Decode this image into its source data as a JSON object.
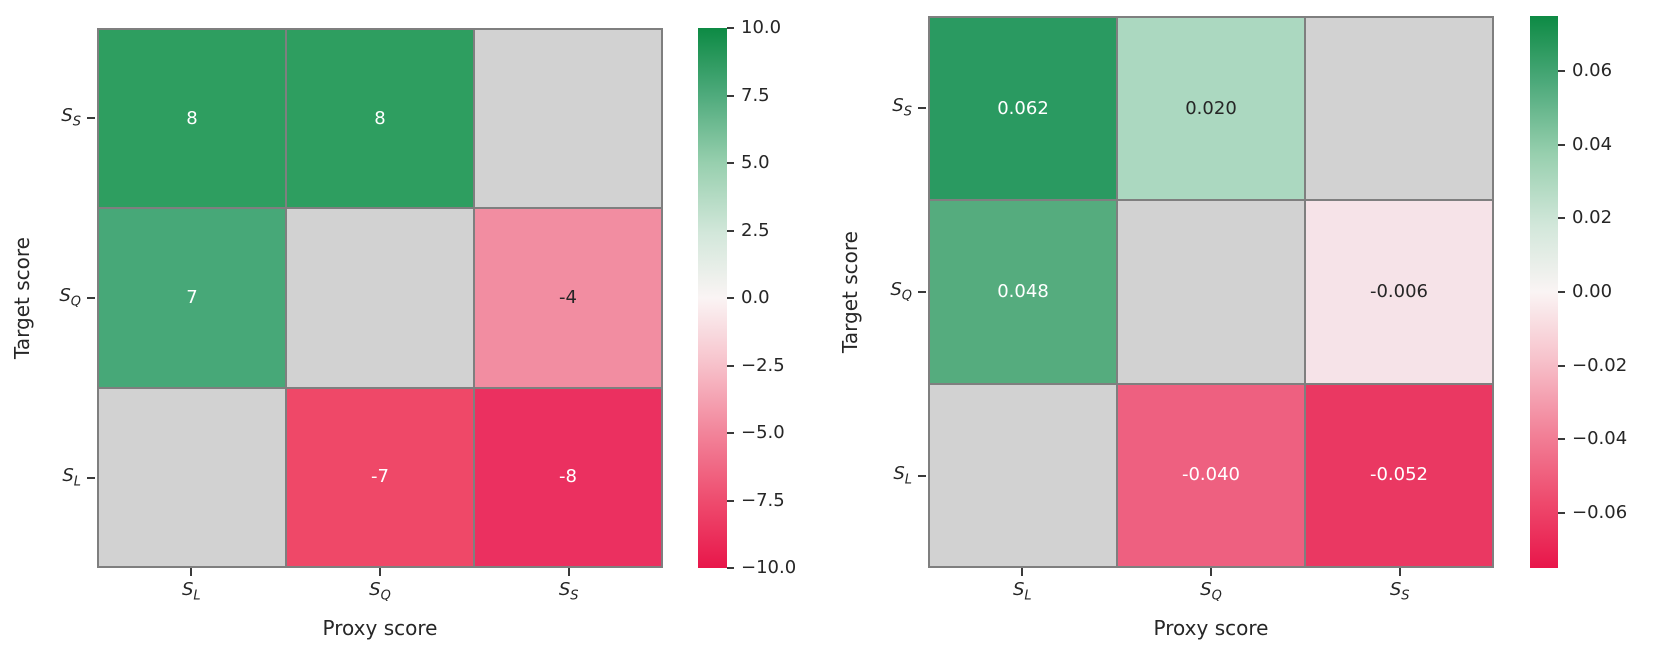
{
  "chart_data": [
    {
      "type": "heatmap",
      "title": "",
      "xlabel": "Proxy score",
      "ylabel": "Target score",
      "x_ticklabels": [
        {
          "base": "S",
          "sub": "L"
        },
        {
          "base": "S",
          "sub": "Q"
        },
        {
          "base": "S",
          "sub": "S"
        }
      ],
      "y_ticklabels": [
        {
          "base": "S",
          "sub": "S"
        },
        {
          "base": "S",
          "sub": "Q"
        },
        {
          "base": "S",
          "sub": "L"
        }
      ],
      "values": [
        [
          8,
          8,
          null
        ],
        [
          7,
          null,
          -4
        ],
        [
          null,
          -7,
          -8
        ]
      ],
      "cells": [
        [
          {
            "value": 8,
            "label": "8",
            "bg": "#2e9e60",
            "fg": "#ffffff"
          },
          {
            "value": 8,
            "label": "8",
            "bg": "#2e9e60",
            "fg": "#ffffff"
          },
          {
            "value": null,
            "label": "",
            "bg": "#d2d2d2",
            "fg": "#262626"
          }
        ],
        [
          {
            "value": 7,
            "label": "7",
            "bg": "#47a878",
            "fg": "#ffffff"
          },
          {
            "value": null,
            "label": "",
            "bg": "#d2d2d2",
            "fg": "#262626"
          },
          {
            "value": -4,
            "label": "-4",
            "bg": "#f28da1",
            "fg": "#262626"
          }
        ],
        [
          {
            "value": null,
            "label": "",
            "bg": "#d2d2d2",
            "fg": "#262626"
          },
          {
            "value": -7,
            "label": "-7",
            "bg": "#ef4868",
            "fg": "#ffffff"
          },
          {
            "value": -8,
            "label": "-8",
            "bg": "#eb3060",
            "fg": "#ffffff"
          }
        ]
      ],
      "colorbar": {
        "vmin": -10,
        "vmax": 10,
        "ticks": [
          {
            "v": 10,
            "label": "10.0"
          },
          {
            "v": 7.5,
            "label": "7.5"
          },
          {
            "v": 5,
            "label": "5.0"
          },
          {
            "v": 2.5,
            "label": "2.5"
          },
          {
            "v": 0,
            "label": "0.0"
          },
          {
            "v": -2.5,
            "label": "−2.5"
          },
          {
            "v": -5,
            "label": "−5.0"
          },
          {
            "v": -7.5,
            "label": "−7.5"
          },
          {
            "v": -10,
            "label": "−10.0"
          }
        ],
        "stops": [
          {
            "pos": 0,
            "color": "#e8164a"
          },
          {
            "pos": 0.12,
            "color": "#ee4a6d"
          },
          {
            "pos": 0.25,
            "color": "#f2849a"
          },
          {
            "pos": 0.38,
            "color": "#f7c3cc"
          },
          {
            "pos": 0.5,
            "color": "#faf4f4"
          },
          {
            "pos": 0.62,
            "color": "#d2e7da"
          },
          {
            "pos": 0.75,
            "color": "#97cfae"
          },
          {
            "pos": 0.88,
            "color": "#4ca97a"
          },
          {
            "pos": 1,
            "color": "#0d8a44"
          }
        ]
      }
    },
    {
      "type": "heatmap",
      "title": "",
      "xlabel": "Proxy score",
      "ylabel": "Target score",
      "x_ticklabels": [
        {
          "base": "S",
          "sub": "L"
        },
        {
          "base": "S",
          "sub": "Q"
        },
        {
          "base": "S",
          "sub": "S"
        }
      ],
      "y_ticklabels": [
        {
          "base": "S",
          "sub": "S"
        },
        {
          "base": "S",
          "sub": "Q"
        },
        {
          "base": "S",
          "sub": "L"
        }
      ],
      "values": [
        [
          0.062,
          0.02,
          null
        ],
        [
          0.048,
          null,
          -0.006
        ],
        [
          null,
          -0.04,
          -0.052
        ]
      ],
      "cells": [
        [
          {
            "value": 0.062,
            "label": "0.062",
            "bg": "#2a9a61",
            "fg": "#ffffff"
          },
          {
            "value": 0.02,
            "label": "0.020",
            "bg": "#abd8c0",
            "fg": "#262626"
          },
          {
            "value": null,
            "label": "",
            "bg": "#d2d2d2",
            "fg": "#262626"
          }
        ],
        [
          {
            "value": 0.048,
            "label": "0.048",
            "bg": "#55ac7e",
            "fg": "#ffffff"
          },
          {
            "value": null,
            "label": "",
            "bg": "#d2d2d2",
            "fg": "#262626"
          },
          {
            "value": -0.006,
            "label": "-0.006",
            "bg": "#f6e3e8",
            "fg": "#262626"
          }
        ],
        [
          {
            "value": null,
            "label": "",
            "bg": "#d2d2d2",
            "fg": "#262626"
          },
          {
            "value": -0.04,
            "label": "-0.040",
            "bg": "#ee6080",
            "fg": "#ffffff"
          },
          {
            "value": -0.052,
            "label": "-0.052",
            "bg": "#ea3862",
            "fg": "#ffffff"
          }
        ]
      ],
      "colorbar": {
        "vmin": -0.075,
        "vmax": 0.075,
        "ticks": [
          {
            "v": 0.06,
            "label": "0.06"
          },
          {
            "v": 0.04,
            "label": "0.04"
          },
          {
            "v": 0.02,
            "label": "0.02"
          },
          {
            "v": 0,
            "label": "0.00"
          },
          {
            "v": -0.02,
            "label": "−0.02"
          },
          {
            "v": -0.04,
            "label": "−0.04"
          },
          {
            "v": -0.06,
            "label": "−0.06"
          }
        ],
        "stops": [
          {
            "pos": 0,
            "color": "#e8164a"
          },
          {
            "pos": 0.12,
            "color": "#ee4a6d"
          },
          {
            "pos": 0.25,
            "color": "#f2849a"
          },
          {
            "pos": 0.38,
            "color": "#f7c3cc"
          },
          {
            "pos": 0.5,
            "color": "#faf4f4"
          },
          {
            "pos": 0.62,
            "color": "#d2e7da"
          },
          {
            "pos": 0.75,
            "color": "#97cfae"
          },
          {
            "pos": 0.88,
            "color": "#4ca97a"
          },
          {
            "pos": 1,
            "color": "#0d8a44"
          }
        ]
      }
    }
  ]
}
